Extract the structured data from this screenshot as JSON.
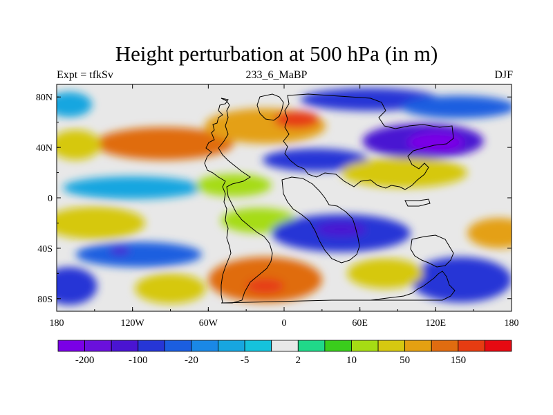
{
  "title": "Height perturbation at 500 hPa (in m)",
  "subtitle_left": "Expt = tfkSv",
  "subtitle_center": "233_6_MaBP",
  "subtitle_right": "DJF",
  "chart_data": {
    "type": "heatmap",
    "title": "Height perturbation at 500 hPa (in m)",
    "variable": "Height perturbation at 500 hPa",
    "units": "m",
    "x_axis": {
      "range": [
        -180,
        180
      ],
      "ticks": [
        -180,
        -120,
        -60,
        0,
        60,
        120,
        180
      ],
      "tick_labels": [
        "180",
        "120W",
        "60W",
        "0",
        "60E",
        "120E",
        "180"
      ]
    },
    "y_axis": {
      "range": [
        -90,
        90
      ],
      "ticks": [
        80,
        40,
        0,
        -40,
        -80
      ],
      "tick_labels": [
        "80N",
        "40N",
        "0",
        "40S",
        "80S"
      ]
    },
    "colorbar": {
      "colors": [
        "#7a00e6",
        "#6a10dc",
        "#4a14d2",
        "#2636d6",
        "#1b5ee0",
        "#1a88e6",
        "#17a6e0",
        "#15c2dc",
        "#e8e8e8",
        "#20d889",
        "#3acd1c",
        "#a6dc14",
        "#d6c810",
        "#e4a012",
        "#e06c10",
        "#e63c12",
        "#e60a12"
      ],
      "labels": [
        "-200",
        "-100",
        "-20",
        "-5",
        "2",
        "10",
        "50",
        "150"
      ]
    },
    "features": [
      {
        "lon": -95,
        "lat": 43,
        "value": 120,
        "rx": 55,
        "ry": 13
      },
      {
        "lon": -15,
        "lat": 57,
        "value": 90,
        "rx": 48,
        "ry": 14
      },
      {
        "lon": 10,
        "lat": 62,
        "value": 160,
        "rx": 18,
        "ry": 7
      },
      {
        "lon": 68,
        "lat": 78,
        "value": -80,
        "rx": 55,
        "ry": 9
      },
      {
        "lon": 138,
        "lat": 72,
        "value": -50,
        "rx": 45,
        "ry": 9
      },
      {
        "lon": 110,
        "lat": 45,
        "value": -150,
        "rx": 48,
        "ry": 14
      },
      {
        "lon": 120,
        "lat": 44,
        "value": -220,
        "rx": 22,
        "ry": 8
      },
      {
        "lon": 25,
        "lat": 30,
        "value": -60,
        "rx": 42,
        "ry": 9
      },
      {
        "lon": 95,
        "lat": 20,
        "value": 40,
        "rx": 50,
        "ry": 12
      },
      {
        "lon": -165,
        "lat": 42,
        "value": 40,
        "rx": 20,
        "ry": 12
      },
      {
        "lon": -170,
        "lat": 74,
        "value": -10,
        "rx": 18,
        "ry": 10
      },
      {
        "lon": -120,
        "lat": 8,
        "value": -10,
        "rx": 55,
        "ry": 9
      },
      {
        "lon": -40,
        "lat": 10,
        "value": 10,
        "rx": 30,
        "ry": 9
      },
      {
        "lon": -150,
        "lat": -20,
        "value": 25,
        "rx": 40,
        "ry": 13
      },
      {
        "lon": -20,
        "lat": -18,
        "value": 15,
        "rx": 30,
        "ry": 10
      },
      {
        "lon": 170,
        "lat": -28,
        "value": 60,
        "rx": 25,
        "ry": 12
      },
      {
        "lon": 45,
        "lat": -28,
        "value": -60,
        "rx": 55,
        "ry": 15
      },
      {
        "lon": 45,
        "lat": -25,
        "value": -110,
        "rx": 20,
        "ry": 6
      },
      {
        "lon": -115,
        "lat": -45,
        "value": -50,
        "rx": 50,
        "ry": 10
      },
      {
        "lon": -130,
        "lat": -42,
        "value": -150,
        "rx": 8,
        "ry": 3
      },
      {
        "lon": -15,
        "lat": -65,
        "value": 110,
        "rx": 45,
        "ry": 18
      },
      {
        "lon": -15,
        "lat": -70,
        "value": 180,
        "rx": 15,
        "ry": 6
      },
      {
        "lon": 140,
        "lat": -65,
        "value": -60,
        "rx": 40,
        "ry": 18
      },
      {
        "lon": -170,
        "lat": -70,
        "value": -70,
        "rx": 22,
        "ry": 15
      },
      {
        "lon": -90,
        "lat": -72,
        "value": 30,
        "rx": 28,
        "ry": 12
      },
      {
        "lon": 80,
        "lat": -60,
        "value": 30,
        "rx": 30,
        "ry": 12
      }
    ]
  }
}
